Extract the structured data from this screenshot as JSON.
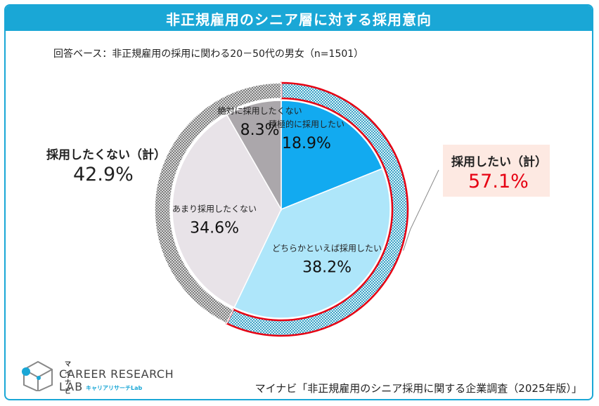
{
  "title": "非正規雇用のシニア層に対する採用意向",
  "subtitle": "回答ベース：非正規雇用の採用に関わる20－50代の男女（n=1501）",
  "chart_data": {
    "type": "pie",
    "unit": "%",
    "slices": [
      {
        "label": "積極的に採用したい",
        "value": 18.9,
        "value_label": "18.9%",
        "color": "#12aaf0"
      },
      {
        "label": "どちらかといえば採用したい",
        "value": 38.2,
        "value_label": "38.2%",
        "color": "#aee6fa"
      },
      {
        "label": "あまり採用したくない",
        "value": 34.6,
        "value_label": "34.6%",
        "color": "#e8e3e8"
      },
      {
        "label": "絶対に採用したくない",
        "value": 8.3,
        "value_label": "8.3%",
        "color": "#aba7ab"
      }
    ],
    "groups": [
      {
        "label": "採用したい（計）",
        "value": 57.1,
        "value_label": "57.1%",
        "color": "#43a6c6",
        "outline": "#e60012"
      },
      {
        "label": "採用したくない（計）",
        "value": 42.9,
        "value_label": "42.9%",
        "color": "#8c8c8c"
      }
    ]
  },
  "logo": {
    "small": "マイナビ",
    "line1": "CAREER RESEARCH",
    "line2": "LAB",
    "sub": "キャリアリサーチLab"
  },
  "source": "マイナビ「非正規雇用のシニア採用に関する企業調査（2025年版）」",
  "colors": {
    "accent": "#1aa7d6",
    "highlight": "#e60012",
    "highlight_bg": "#fde9e2"
  }
}
